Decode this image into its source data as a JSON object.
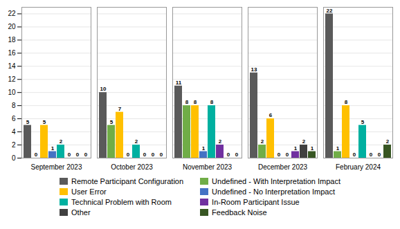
{
  "chart_data": {
    "type": "bar",
    "categories": [
      "September 2023",
      "October 2023",
      "November 2023",
      "December 2023",
      "February 2024"
    ],
    "series": [
      {
        "name": "Remote Participant Configuration",
        "color": "#5A5A5A",
        "values": [
          5,
          10,
          11,
          13,
          22
        ]
      },
      {
        "name": "Undefined - With Interpretation Impact",
        "color": "#70AD47",
        "values": [
          0,
          5,
          8,
          2,
          1
        ]
      },
      {
        "name": "User Error",
        "color": "#FFC000",
        "values": [
          5,
          7,
          8,
          6,
          8
        ]
      },
      {
        "name": "Undefined - No Interpretation Impact",
        "color": "#4472C4",
        "values": [
          1,
          0,
          1,
          0,
          0
        ]
      },
      {
        "name": "Technical Problem with Room",
        "color": "#00B0A0",
        "values": [
          2,
          2,
          8,
          0,
          5
        ]
      },
      {
        "name": "In-Room Participant Issue",
        "color": "#7030A0",
        "values": [
          0,
          0,
          2,
          1,
          0
        ]
      },
      {
        "name": "Other",
        "color": "#404040",
        "values": [
          0,
          0,
          0,
          2,
          0
        ]
      },
      {
        "name": "Feedback Noise",
        "color": "#375623",
        "values": [
          0,
          0,
          0,
          1,
          2
        ]
      }
    ],
    "ylim": [
      0,
      23
    ],
    "yticks": [
      0,
      2,
      4,
      6,
      8,
      10,
      12,
      14,
      16,
      18,
      20,
      22
    ],
    "grid": true,
    "data_labels": true,
    "legend": "bottom"
  }
}
